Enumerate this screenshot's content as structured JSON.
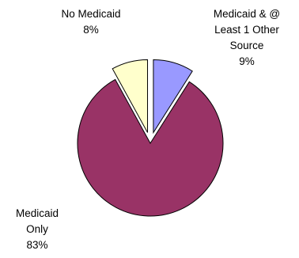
{
  "chart_data": {
    "type": "pie",
    "title": "",
    "slices": [
      {
        "label_lines": [
          "Medicaid & @",
          "Least 1 Other",
          "Source"
        ],
        "value_label": "9%",
        "value": 9,
        "color": "#9999ff"
      },
      {
        "label_lines": [
          "Medicaid",
          "Only"
        ],
        "value_label": "83%",
        "value": 83,
        "color": "#993366"
      },
      {
        "label_lines": [
          "No Medicaid"
        ],
        "value_label": "8%",
        "value": 8,
        "color": "#ffffcc"
      }
    ]
  }
}
